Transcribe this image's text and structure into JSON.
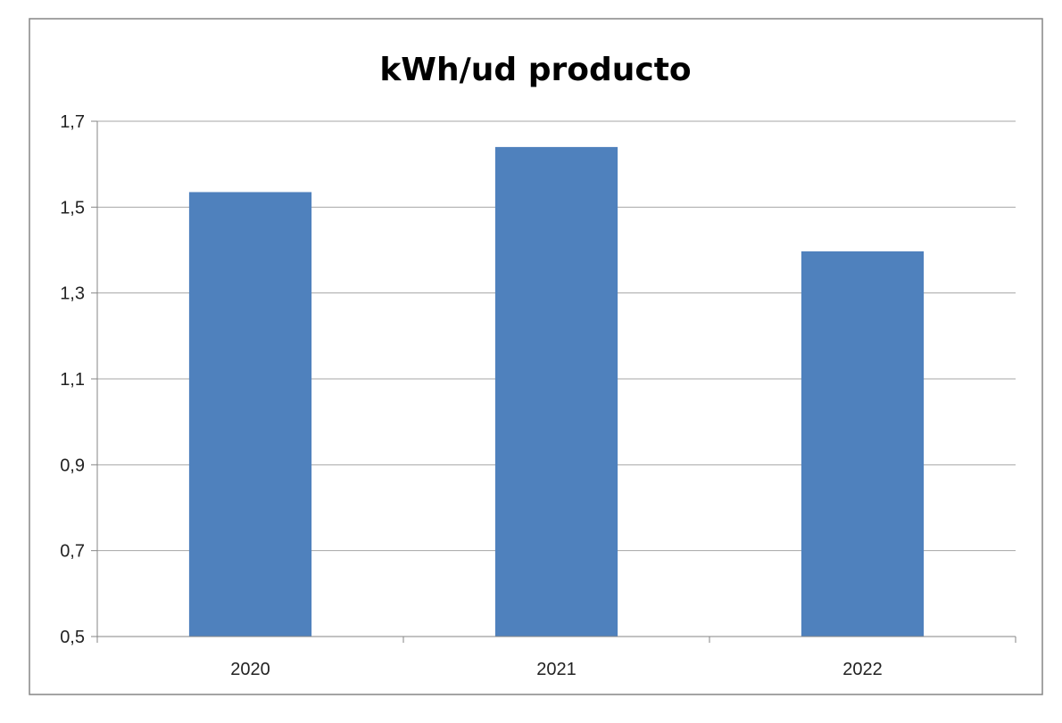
{
  "chart_data": {
    "type": "bar",
    "title": "kWh/ud producto",
    "xlabel": "",
    "ylabel": "",
    "categories": [
      "2020",
      "2021",
      "2022"
    ],
    "values": [
      1.535,
      1.64,
      1.397
    ],
    "ylim": [
      0.5,
      1.7
    ],
    "yticks": [
      0.5,
      0.7,
      0.9,
      1.1,
      1.3,
      1.5,
      1.7
    ],
    "ytick_labels": [
      "0,5",
      "0,7",
      "0,9",
      "1,1",
      "1,3",
      "1,5",
      "1,7"
    ],
    "grid": true,
    "legend": "none",
    "colors": {
      "bar": "#4F81BD",
      "grid": "#A6A6A6",
      "axis": "#868686",
      "frame": "#868686"
    }
  }
}
